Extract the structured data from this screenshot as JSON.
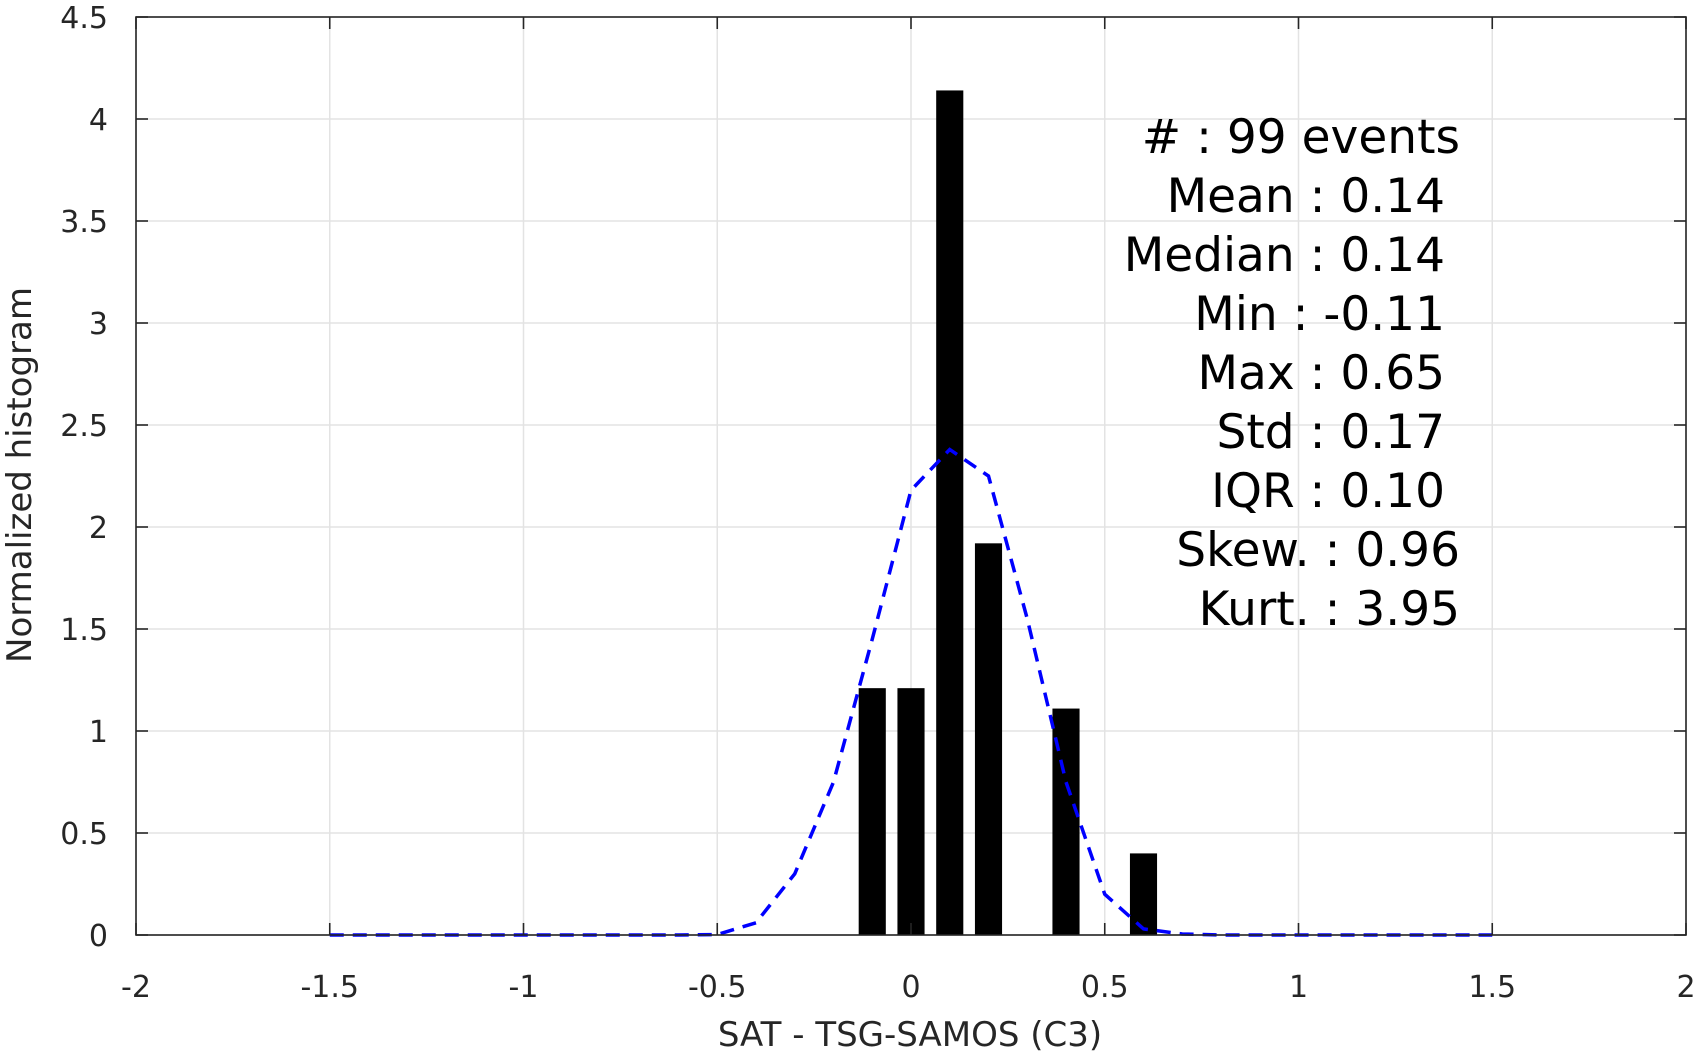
{
  "chart_data": {
    "type": "bar",
    "title": "",
    "xlabel": "SAT - TSG-SAMOS (C3)",
    "ylabel": "Normalized histogram",
    "xlim": [
      -2,
      2
    ],
    "ylim": [
      0,
      4.5
    ],
    "grid": true,
    "x_ticks": [
      -2,
      -1.5,
      -1,
      -0.5,
      0,
      0.5,
      1,
      1.5,
      2
    ],
    "x_tick_labels": [
      "-2",
      "-1.5",
      "-1",
      "-0.5",
      "0",
      "0.5",
      "1",
      "1.5",
      "2"
    ],
    "y_ticks": [
      0,
      0.5,
      1,
      1.5,
      2,
      2.5,
      3,
      3.5,
      4,
      4.5
    ],
    "y_tick_labels": [
      "0",
      "0.5",
      "1",
      "1.5",
      "2",
      "2.5",
      "3",
      "3.5",
      "4",
      "4.5"
    ],
    "bars": {
      "bin_width": 0.1,
      "bar_fraction": 0.7,
      "color": "#000000",
      "centers": [
        -0.1,
        0.0,
        0.1,
        0.2,
        0.3,
        0.4,
        0.5,
        0.6
      ],
      "values": [
        1.21,
        1.21,
        4.14,
        1.92,
        0.0,
        1.11,
        0.0,
        0.4
      ]
    },
    "fit_curve": {
      "style": "dashed",
      "color": "#0000ff",
      "x": [
        -1.5,
        -1.4,
        -1.3,
        -1.2,
        -1.1,
        -1.0,
        -0.9,
        -0.8,
        -0.7,
        -0.6,
        -0.5,
        -0.4,
        -0.3,
        -0.2,
        -0.1,
        0.0,
        0.1,
        0.2,
        0.3,
        0.4,
        0.5,
        0.6,
        0.7,
        0.8,
        0.9,
        1.0,
        1.1,
        1.2,
        1.3,
        1.4,
        1.5
      ],
      "y": [
        0,
        0,
        0,
        0,
        0,
        0,
        0,
        0,
        0,
        0,
        0.002,
        0.06,
        0.3,
        0.75,
        1.45,
        2.18,
        2.38,
        2.25,
        1.55,
        0.75,
        0.2,
        0.03,
        0.005,
        0,
        0,
        0,
        0,
        0,
        0,
        0,
        0
      ]
    },
    "stats_box": [
      "#  : 99 events",
      "Mean : 0.14",
      "Median : 0.14",
      "Min : -0.11",
      "Max : 0.65",
      "Std : 0.17",
      "IQR : 0.10",
      "Skew. : 0.96",
      "Kurt. : 3.95"
    ]
  }
}
